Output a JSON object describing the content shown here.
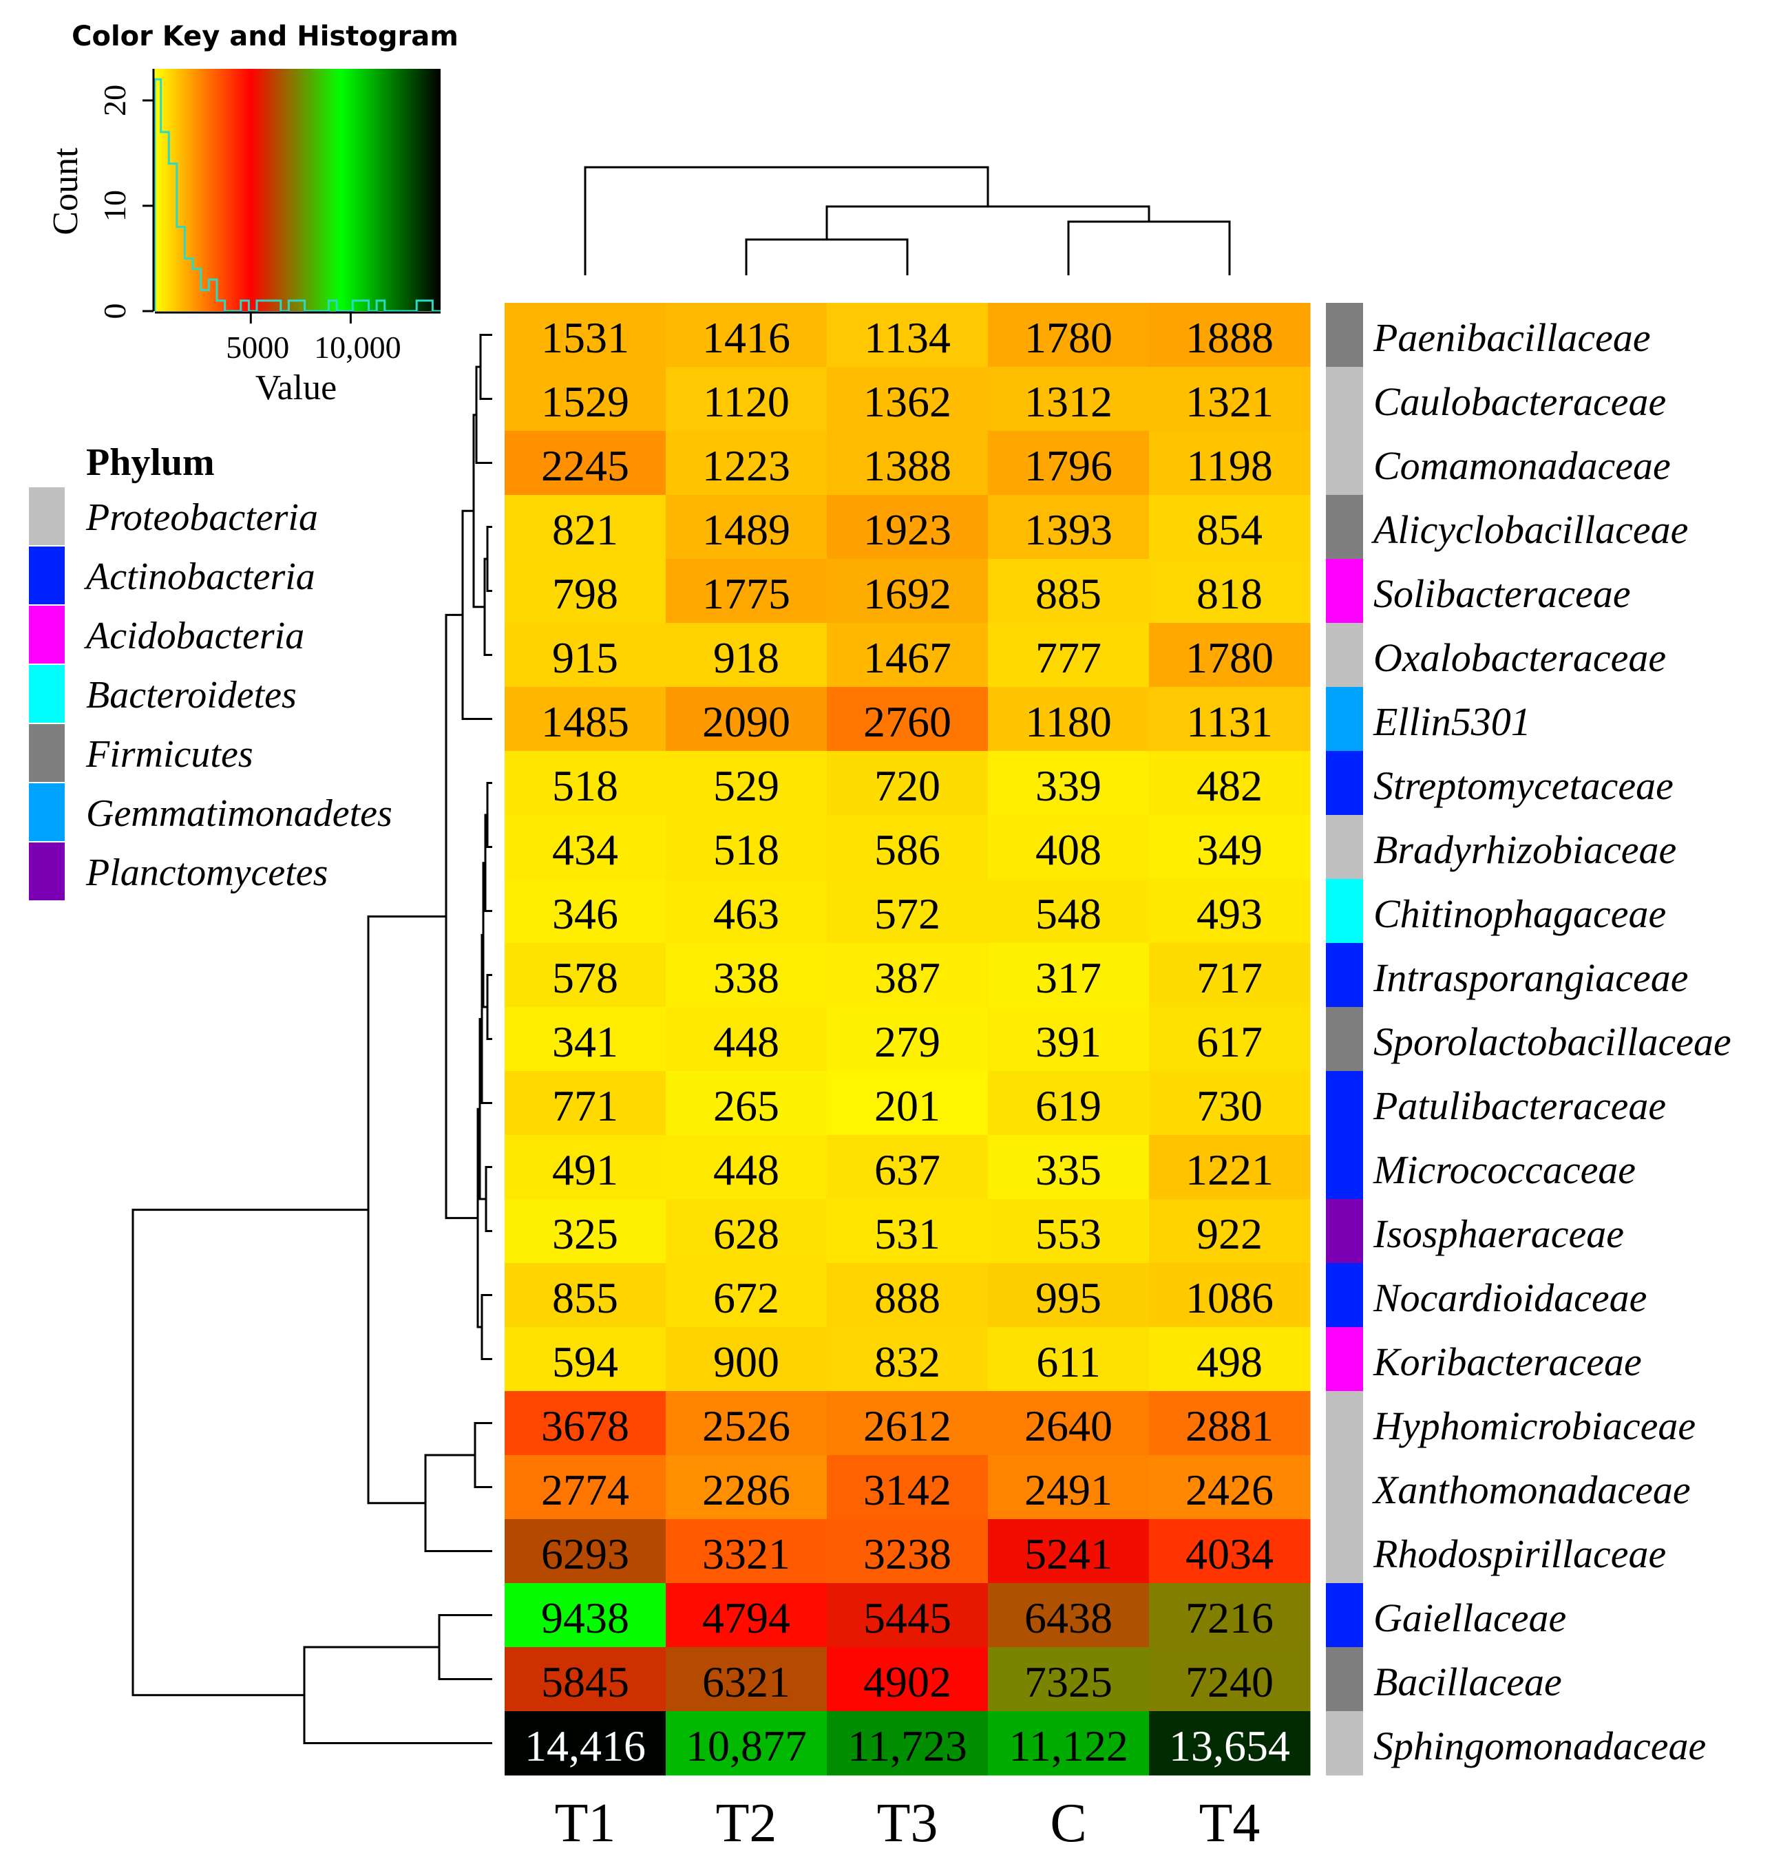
{
  "chart_data": {
    "type": "heatmap",
    "columns": [
      "T1",
      "T2",
      "T3",
      "C",
      "T4"
    ],
    "rows": [
      {
        "name": "Paenibacillaceae",
        "phylum": "Firmicutes",
        "values": [
          1531,
          1416,
          1134,
          1780,
          1888
        ],
        "labels": [
          "1531",
          "1416",
          "1134",
          "1780",
          "1888"
        ]
      },
      {
        "name": "Caulobacteraceae",
        "phylum": "Proteobacteria",
        "values": [
          1529,
          1120,
          1362,
          1312,
          1321
        ],
        "labels": [
          "1529",
          "1120",
          "1362",
          "1312",
          "1321"
        ]
      },
      {
        "name": "Comamonadaceae",
        "phylum": "Proteobacteria",
        "values": [
          2245,
          1223,
          1388,
          1796,
          1198
        ],
        "labels": [
          "2245",
          "1223",
          "1388",
          "1796",
          "1198"
        ]
      },
      {
        "name": "Alicyclobacillaceae",
        "phylum": "Firmicutes",
        "values": [
          821,
          1489,
          1923,
          1393,
          854
        ],
        "labels": [
          "821",
          "1489",
          "1923",
          "1393",
          "854"
        ]
      },
      {
        "name": "Solibacteraceae",
        "phylum": "Acidobacteria",
        "values": [
          798,
          1775,
          1692,
          885,
          818
        ],
        "labels": [
          "798",
          "1775",
          "1692",
          "885",
          "818"
        ]
      },
      {
        "name": "Oxalobacteraceae",
        "phylum": "Proteobacteria",
        "values": [
          915,
          918,
          1467,
          777,
          1780
        ],
        "labels": [
          "915",
          "918",
          "1467",
          "777",
          "1780"
        ]
      },
      {
        "name": "Ellin5301",
        "phylum": "Gemmatimonadetes",
        "values": [
          1485,
          2090,
          2760,
          1180,
          1131
        ],
        "labels": [
          "1485",
          "2090",
          "2760",
          "1180",
          "1131"
        ]
      },
      {
        "name": "Streptomycetaceae",
        "phylum": "Actinobacteria",
        "values": [
          518,
          529,
          720,
          339,
          482
        ],
        "labels": [
          "518",
          "529",
          "720",
          "339",
          "482"
        ]
      },
      {
        "name": "Bradyrhizobiaceae",
        "phylum": "Proteobacteria",
        "values": [
          434,
          518,
          586,
          408,
          349
        ],
        "labels": [
          "434",
          "518",
          "586",
          "408",
          "349"
        ]
      },
      {
        "name": "Chitinophagaceae",
        "phylum": "Bacteroidetes",
        "values": [
          346,
          463,
          572,
          548,
          493
        ],
        "labels": [
          "346",
          "463",
          "572",
          "548",
          "493"
        ]
      },
      {
        "name": "Intrasporangiaceae",
        "phylum": "Actinobacteria",
        "values": [
          578,
          338,
          387,
          317,
          717
        ],
        "labels": [
          "578",
          "338",
          "387",
          "317",
          "717"
        ]
      },
      {
        "name": "Sporolactobacillaceae",
        "phylum": "Firmicutes",
        "values": [
          341,
          448,
          279,
          391,
          617
        ],
        "labels": [
          "341",
          "448",
          "279",
          "391",
          "617"
        ]
      },
      {
        "name": "Patulibacteraceae",
        "phylum": "Actinobacteria",
        "values": [
          771,
          265,
          201,
          619,
          730
        ],
        "labels": [
          "771",
          "265",
          "201",
          "619",
          "730"
        ]
      },
      {
        "name": "Micrococcaceae",
        "phylum": "Actinobacteria",
        "values": [
          491,
          448,
          637,
          335,
          1221
        ],
        "labels": [
          "491",
          "448",
          "637",
          "335",
          "1221"
        ]
      },
      {
        "name": "Isosphaeraceae",
        "phylum": "Planctomycetes",
        "values": [
          325,
          628,
          531,
          553,
          922
        ],
        "labels": [
          "325",
          "628",
          "531",
          "553",
          "922"
        ]
      },
      {
        "name": "Nocardioidaceae",
        "phylum": "Actinobacteria",
        "values": [
          855,
          672,
          888,
          995,
          1086
        ],
        "labels": [
          "855",
          "672",
          "888",
          "995",
          "1086"
        ]
      },
      {
        "name": "Koribacteraceae",
        "phylum": "Acidobacteria",
        "values": [
          594,
          900,
          832,
          611,
          498
        ],
        "labels": [
          "594",
          "900",
          "832",
          "611",
          "498"
        ]
      },
      {
        "name": "Hyphomicrobiaceae",
        "phylum": "Proteobacteria",
        "values": [
          3678,
          2526,
          2612,
          2640,
          2881
        ],
        "labels": [
          "3678",
          "2526",
          "2612",
          "2640",
          "2881"
        ]
      },
      {
        "name": "Xanthomonadaceae",
        "phylum": "Proteobacteria",
        "values": [
          2774,
          2286,
          3142,
          2491,
          2426
        ],
        "labels": [
          "2774",
          "2286",
          "3142",
          "2491",
          "2426"
        ]
      },
      {
        "name": "Rhodospirillaceae",
        "phylum": "Proteobacteria",
        "values": [
          6293,
          3321,
          3238,
          5241,
          4034
        ],
        "labels": [
          "6293",
          "3321",
          "3238",
          "5241",
          "4034"
        ]
      },
      {
        "name": "Gaiellaceae",
        "phylum": "Actinobacteria",
        "values": [
          9438,
          4794,
          5445,
          6438,
          7216
        ],
        "labels": [
          "9438",
          "4794",
          "5445",
          "6438",
          "7216"
        ]
      },
      {
        "name": "Bacillaceae",
        "phylum": "Firmicutes",
        "values": [
          5845,
          6321,
          4902,
          7325,
          7240
        ],
        "labels": [
          "5845",
          "6321",
          "4902",
          "7325",
          "7240"
        ]
      },
      {
        "name": "Sphingomonadaceae",
        "phylum": "Proteobacteria",
        "values": [
          14416,
          10877,
          11723,
          11122,
          13654
        ],
        "labels": [
          "14,416",
          "10,877",
          "11,723",
          "11,122",
          "13,654"
        ]
      }
    ],
    "color_scale": {
      "colors": [
        "#ffff00",
        "#ff8000",
        "#ff0000",
        "#00ff00",
        "#000000"
      ],
      "breaks": [
        0,
        2600,
        5000,
        9500,
        14500
      ]
    },
    "color_key": {
      "title": "Color Key and Histogram",
      "xlabel": "Value",
      "ylabel": "Count",
      "x_ticks": [
        {
          "value": 5000,
          "label": "5000"
        },
        {
          "value": 10000,
          "label": "10,000"
        }
      ],
      "y_ticks": [
        0,
        10,
        20
      ],
      "xlim": [
        200,
        14500
      ],
      "ylim": [
        0,
        23
      ],
      "histogram_color": "#2ad9c8",
      "histogram_bins": [
        500,
        900,
        1300,
        1700,
        2100,
        2500,
        2900,
        3300,
        3700,
        4100,
        4500,
        4900,
        5300,
        5700,
        6100,
        6500,
        6900,
        7300,
        7700,
        8100,
        8500,
        8900,
        9300,
        9700,
        10100,
        10500,
        10900,
        11300,
        11700,
        12100,
        12500,
        12900,
        13300,
        13700,
        14100,
        14500
      ],
      "histogram_counts": [
        22,
        17,
        14,
        8,
        5,
        4,
        2,
        3,
        1,
        0,
        0,
        1,
        0,
        1,
        1,
        1,
        0,
        1,
        1,
        0,
        0,
        0,
        1,
        0,
        0,
        1,
        1,
        0,
        1,
        0,
        0,
        0,
        0,
        1,
        1,
        0
      ]
    },
    "legend": {
      "title": "Phylum",
      "items": [
        {
          "name": "Proteobacteria",
          "color": "#c0c0c0"
        },
        {
          "name": "Actinobacteria",
          "color": "#0022ff"
        },
        {
          "name": "Acidobacteria",
          "color": "#ff00ff"
        },
        {
          "name": "Bacteroidetes",
          "color": "#00ffff"
        },
        {
          "name": "Firmicutes",
          "color": "#7f7f7f"
        },
        {
          "name": "Gemmatimonadetes",
          "color": "#00a2ff"
        },
        {
          "name": "Planctomycetes",
          "color": "#7b00b4"
        }
      ]
    }
  }
}
